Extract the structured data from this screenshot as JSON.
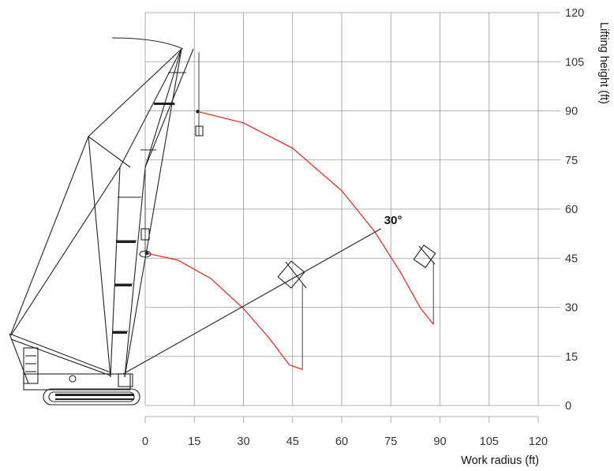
{
  "chart_data": {
    "type": "line",
    "xlabel": "Work radius (ft)",
    "ylabel": "Lifting height (ft)",
    "xlim": [
      0,
      120
    ],
    "ylim": [
      0,
      120
    ],
    "x_ticks": [
      "0",
      "15",
      "30",
      "45",
      "60",
      "75",
      "90",
      "105",
      "120"
    ],
    "y_ticks": [
      "0",
      "15",
      "30",
      "45",
      "60",
      "75",
      "90",
      "105",
      "120"
    ],
    "grid": true,
    "annotations": [
      "30°"
    ],
    "series": [
      {
        "x": [
          0.5,
          10,
          20,
          30,
          38,
          44,
          48
        ],
        "y": [
          46.5,
          44.4,
          38.8,
          29.6,
          20.4,
          12.4,
          11
        ]
      },
      {
        "x": [
          16,
          30,
          45,
          60,
          70,
          78,
          84,
          88
        ],
        "y": [
          89.8,
          86.3,
          78.6,
          65.6,
          53.2,
          40.6,
          29.8,
          24.8
        ]
      },
      {
        "x": [
          48,
          48
        ],
        "y": [
          11,
          37
        ]
      },
      {
        "x": [
          88,
          88
        ],
        "y": [
          24.8,
          44
        ]
      }
    ],
    "colors": {
      "curves": "#e8231c",
      "crane": "#222222",
      "grid": "#9a9a9a"
    }
  }
}
